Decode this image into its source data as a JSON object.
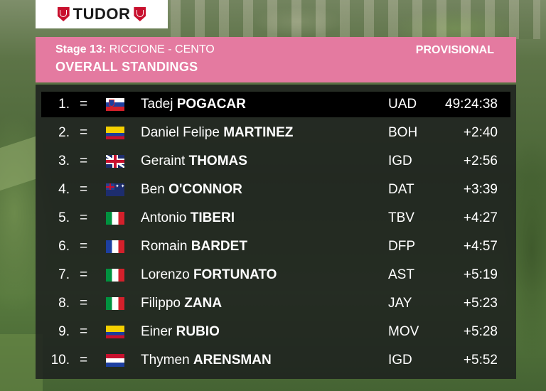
{
  "logo": {
    "text": "TUDOR",
    "icon": "tudor-shield-icon",
    "color": "#c8102e"
  },
  "header": {
    "stage": "Stage 13:",
    "route": "RICCIONE - CENTO",
    "title": "OVERALL STANDINGS",
    "status": "PROVISIONAL",
    "color": "#e47aa0"
  },
  "standings": [
    {
      "pos": "1.",
      "change": "=",
      "flag": "SI",
      "first": "Tadej",
      "last": "POGACAR",
      "team": "UAD",
      "time": "49:24:38"
    },
    {
      "pos": "2.",
      "change": "=",
      "flag": "CO",
      "first": "Daniel Felipe",
      "last": "MARTINEZ",
      "team": "BOH",
      "time": "+2:40"
    },
    {
      "pos": "3.",
      "change": "=",
      "flag": "GB",
      "first": "Geraint",
      "last": "THOMAS",
      "team": "IGD",
      "time": "+2:56"
    },
    {
      "pos": "4.",
      "change": "=",
      "flag": "AU",
      "first": "Ben",
      "last": "O'CONNOR",
      "team": "DAT",
      "time": "+3:39"
    },
    {
      "pos": "5.",
      "change": "=",
      "flag": "IT",
      "first": "Antonio",
      "last": "TIBERI",
      "team": "TBV",
      "time": "+4:27"
    },
    {
      "pos": "6.",
      "change": "=",
      "flag": "FR",
      "first": "Romain",
      "last": "BARDET",
      "team": "DFP",
      "time": "+4:57"
    },
    {
      "pos": "7.",
      "change": "=",
      "flag": "IT",
      "first": "Lorenzo",
      "last": "FORTUNATO",
      "team": "AST",
      "time": "+5:19"
    },
    {
      "pos": "8.",
      "change": "=",
      "flag": "IT",
      "first": "Filippo",
      "last": "ZANA",
      "team": "JAY",
      "time": "+5:23"
    },
    {
      "pos": "9.",
      "change": "=",
      "flag": "CO",
      "first": "Einer",
      "last": "RUBIO",
      "team": "MOV",
      "time": "+5:28"
    },
    {
      "pos": "10.",
      "change": "=",
      "flag": "NL",
      "first": "Thymen",
      "last": "ARENSMAN",
      "team": "IGD",
      "time": "+5:52"
    }
  ]
}
